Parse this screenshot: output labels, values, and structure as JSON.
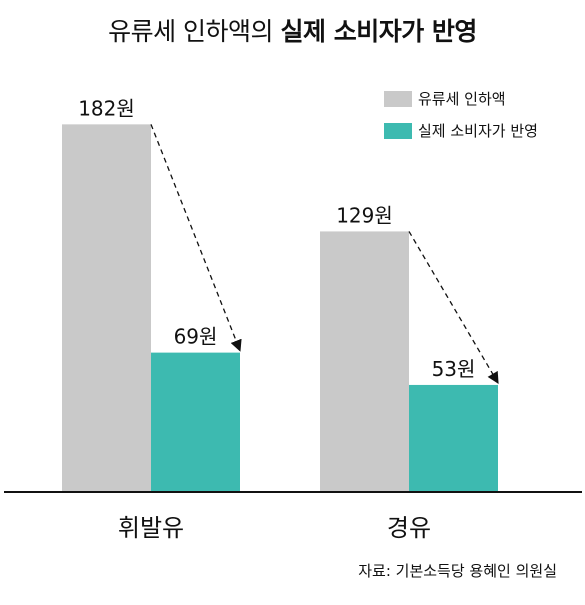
{
  "title": {
    "light": "유류세 인하액의",
    "bold": "실제 소비자가 반영"
  },
  "source": "자료: 기본소득당 용혜인 의원실",
  "colors": {
    "reduction": "#c9c9c9",
    "reflected": "#3dbab0",
    "axis": "#111111"
  },
  "chart_data": {
    "type": "bar",
    "categories": [
      "휘발유",
      "경유"
    ],
    "series": [
      {
        "name": "유류세 인하액",
        "values": [
          182,
          129
        ],
        "labels": [
          "182원",
          "129원"
        ]
      },
      {
        "name": "실제 소비자가 반영",
        "values": [
          69,
          53
        ],
        "labels": [
          "69원",
          "53원"
        ]
      }
    ],
    "ylim": [
      0,
      200
    ],
    "legend": "top-right",
    "grid": false,
    "annotations": "dashed arrows from each grey bar top to its teal bar top"
  }
}
